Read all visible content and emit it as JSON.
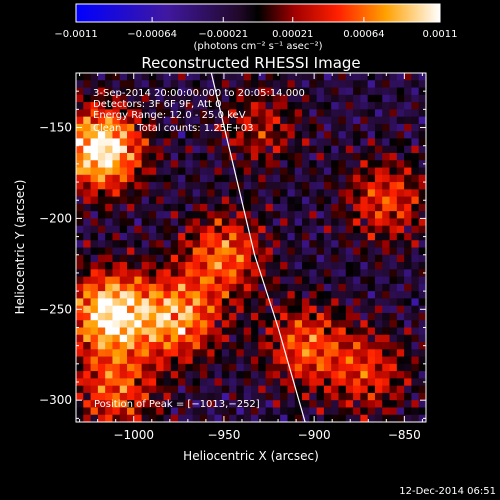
{
  "chart_data": {
    "type": "heatmap",
    "title": "Reconstructed RHESSI Image",
    "xlabel": "Heliocentric X (arcsec)",
    "ylabel": "Heliocentric Y (arcsec)",
    "xlim": [
      -1032,
      -838
    ],
    "ylim": [
      -312,
      -120
    ],
    "x_ticks": [
      -1000,
      -950,
      -900,
      -850
    ],
    "y_ticks": [
      -300,
      -250,
      -200,
      -150
    ],
    "x_tick_labels": [
      "−1000",
      "−950",
      "−900",
      "−850"
    ],
    "y_tick_labels": [
      "−300",
      "−250",
      "−200",
      "−150"
    ],
    "colorbar": {
      "range": [
        -0.0011,
        0.0011
      ],
      "ticks": [
        -0.0011,
        -0.00064,
        -0.00021,
        0.00021,
        0.00064,
        0.0011
      ],
      "tick_labels": [
        "−0.0011",
        "−0.00064",
        "−0.00021",
        "0.00021",
        "0.00064",
        "0.0011"
      ],
      "unit_label": "(photons cm⁻² s⁻¹ asec⁻²)"
    },
    "annotations": [
      "3-Sep-2014 20:00:00.000 to 20:05:14.000",
      "Detectors: 3F 6F 9F, Att 0",
      "Energy Range: 12.0 - 25.0 keV",
      "Clean     Total counts: 1.25E+03"
    ],
    "peak_label": "Position of Peak = [−1013,−252]",
    "peak": {
      "x": -1013,
      "y": -252
    },
    "limb_line": [
      [
        -957,
        -120
      ],
      [
        -945,
        -170
      ],
      [
        -933,
        -220
      ],
      [
        -920,
        -260
      ],
      [
        -905,
        -312
      ]
    ],
    "hotspots": [
      {
        "x": -1018,
        "y": -162,
        "strength": 1.0
      },
      {
        "x": -1013,
        "y": -252,
        "strength": 0.95
      },
      {
        "x": -975,
        "y": -255,
        "strength": 0.7
      },
      {
        "x": -950,
        "y": -220,
        "strength": 0.6
      },
      {
        "x": -1010,
        "y": -295,
        "strength": 0.55
      },
      {
        "x": -905,
        "y": -270,
        "strength": 0.55
      },
      {
        "x": -860,
        "y": -190,
        "strength": 0.5
      },
      {
        "x": -870,
        "y": -285,
        "strength": 0.45
      },
      {
        "x": -930,
        "y": -150,
        "strength": 0.35
      }
    ]
  },
  "footer": {
    "timestamp": "12-Dec-2014 06:51"
  }
}
